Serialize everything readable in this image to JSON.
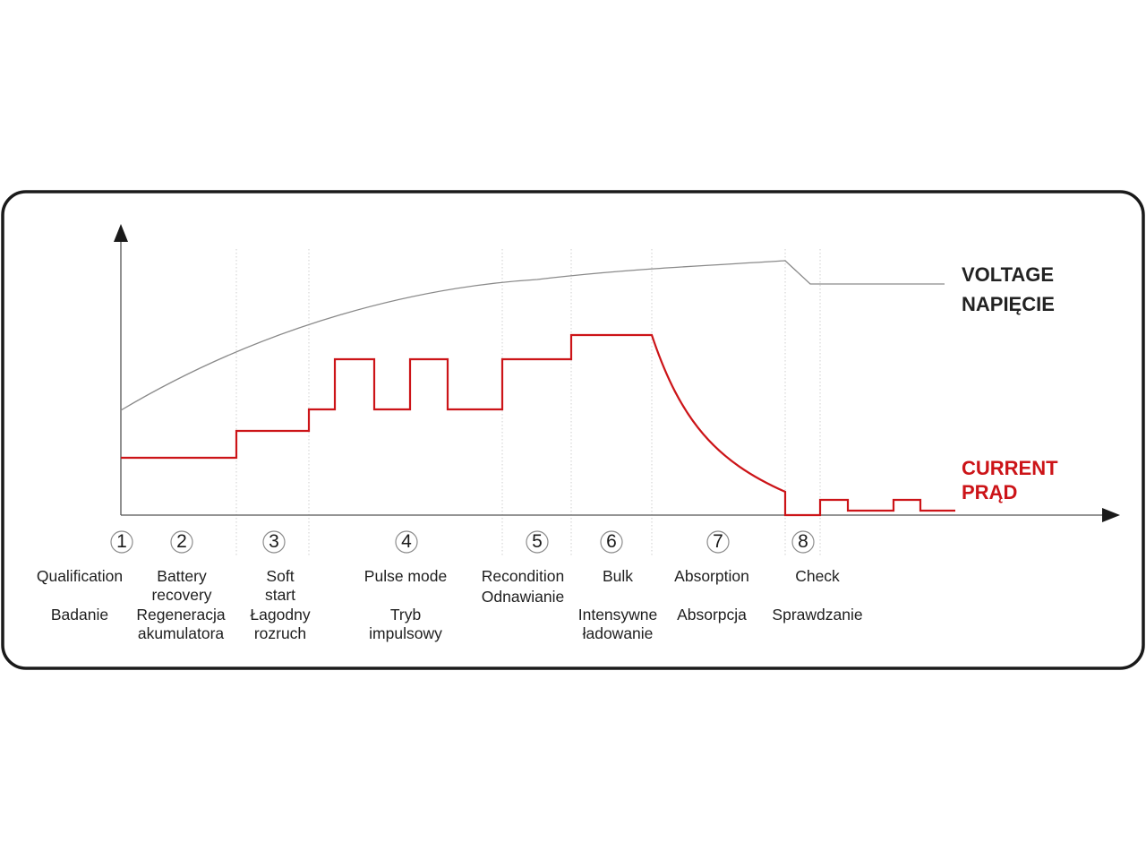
{
  "series": {
    "voltage": {
      "label_en": "VOLTAGE",
      "label_pl": "NAPIĘCIE",
      "color": "#222222",
      "curve_color": "#8a8a8a"
    },
    "current": {
      "label_en": "CURRENT",
      "label_pl": "PRĄD",
      "color": "#cc1418"
    }
  },
  "stages": [
    {
      "step": "1",
      "name_en": "Qualification",
      "name_pl": "Badanie"
    },
    {
      "step": "2",
      "name_en": "Battery\nrecovery",
      "name_pl": "Regeneracja\nakumulatora"
    },
    {
      "step": "3",
      "name_en": "Soft\nstart",
      "name_pl": "Łagodny\nrozruch"
    },
    {
      "step": "4",
      "name_en": "Pulse mode",
      "name_pl": "Tryb\nimpulsowy"
    },
    {
      "step": "5",
      "name_en": "Recondition",
      "name_pl": "Odnawianie"
    },
    {
      "step": "6",
      "name_en": "Bulk",
      "name_pl": "Intensywne\nładowanie"
    },
    {
      "step": "7",
      "name_en": "Absorption",
      "name_pl": "Absorpcja"
    },
    {
      "step": "8",
      "name_en": "Check",
      "name_pl": "Sprawdzanie"
    }
  ],
  "colors": {
    "frame": "#1a1a1a",
    "axis": "#555555",
    "grid": "#cfcfcf",
    "circle": "#8c8c8c"
  }
}
